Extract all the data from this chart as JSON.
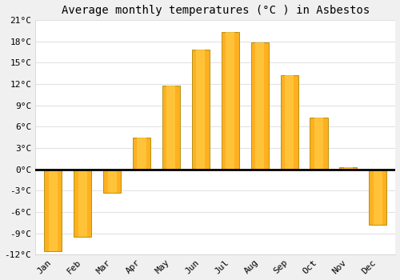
{
  "title": "Average monthly temperatures (°C ) in Asbestos",
  "months": [
    "Jan",
    "Feb",
    "Mar",
    "Apr",
    "May",
    "Jun",
    "Jul",
    "Aug",
    "Sep",
    "Oct",
    "Nov",
    "Dec"
  ],
  "values": [
    -11.5,
    -9.5,
    -3.3,
    4.5,
    11.8,
    16.8,
    19.3,
    17.8,
    13.2,
    7.3,
    0.3,
    -7.8
  ],
  "bar_color": "#FFA500",
  "bar_edge_color": "#888800",
  "ylim": [
    -12,
    21
  ],
  "yticks": [
    -12,
    -9,
    -6,
    -3,
    0,
    3,
    6,
    9,
    12,
    15,
    18,
    21
  ],
  "ytick_labels": [
    "-12°C",
    "-9°C",
    "-6°C",
    "-3°C",
    "0°C",
    "3°C",
    "6°C",
    "9°C",
    "12°C",
    "15°C",
    "18°C",
    "21°C"
  ],
  "plot_bg_color": "#ffffff",
  "fig_bg_color": "#f0f0f0",
  "grid_color": "#e0e0e0",
  "title_fontsize": 10,
  "tick_fontsize": 8,
  "bar_width": 0.6
}
